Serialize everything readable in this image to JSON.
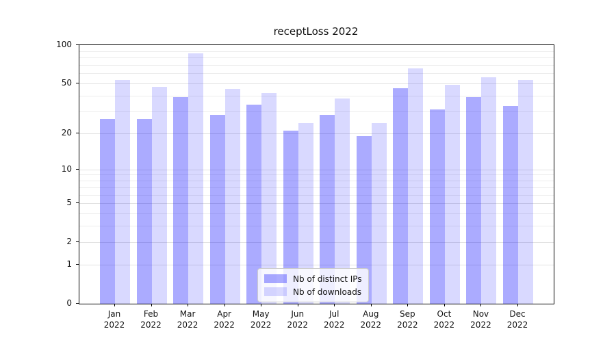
{
  "chart_data": {
    "type": "bar",
    "title": "receptLoss 2022",
    "months": [
      "Jan",
      "Feb",
      "Mar",
      "Apr",
      "May",
      "Jun",
      "Jul",
      "Aug",
      "Sep",
      "Oct",
      "Nov",
      "Dec"
    ],
    "year": "2022",
    "series": [
      {
        "name": "Nb of distinct IPs",
        "color": "rgba(0,0,255,0.33)",
        "color_hex": "#aaaaff",
        "values": [
          26,
          26,
          39,
          28,
          34,
          21,
          28,
          19,
          46,
          31,
          39,
          33
        ]
      },
      {
        "name": "Nb of downloads",
        "color": "rgba(0,0,255,0.15)",
        "color_hex": "#d9d9ff",
        "values": [
          53,
          47,
          86,
          45,
          42,
          24,
          38,
          24,
          66,
          49,
          56,
          53
        ]
      }
    ],
    "y_axis": {
      "scale": "log1p",
      "max": 100,
      "ticks": [
        0,
        1,
        2,
        5,
        10,
        20,
        50,
        100
      ],
      "minor_ticks": [
        3,
        4,
        6,
        7,
        8,
        9,
        30,
        40,
        60,
        70,
        80,
        90
      ]
    },
    "legend_position": "lower center",
    "grid": true,
    "colors": {
      "grid_major": "#e2e2e2",
      "grid_minor": "#ececec",
      "spine": "#000000"
    }
  }
}
